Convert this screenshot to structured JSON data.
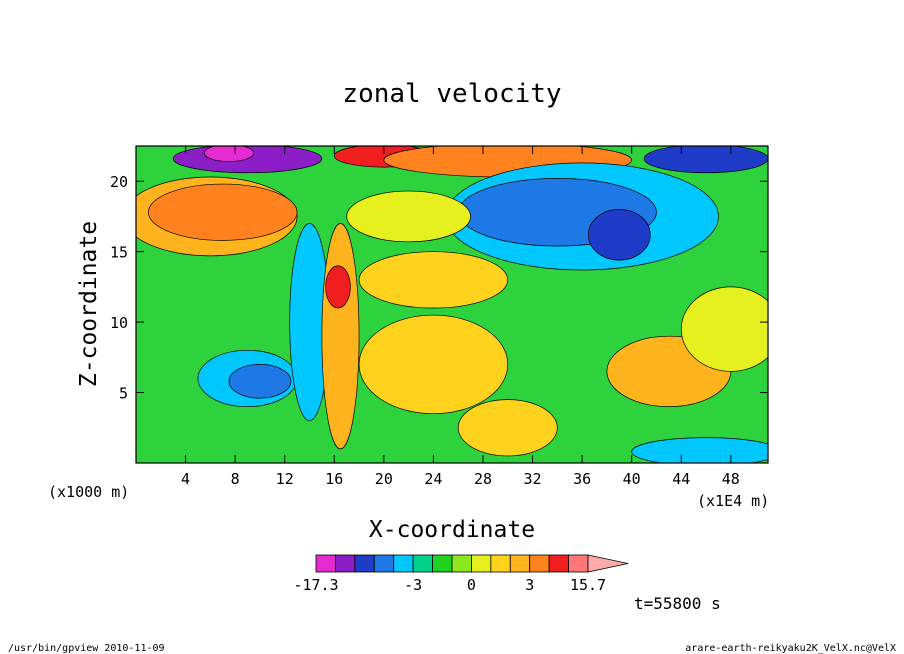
{
  "chart_data": {
    "type": "heatmap",
    "title": "zonal velocity",
    "xlabel": "X-coordinate",
    "ylabel": "Z-coordinate",
    "x_unit_label": "(x1E4 m)",
    "y_unit_label": "(x1000 m)",
    "xlim": [
      0,
      51
    ],
    "ylim": [
      0,
      22.5
    ],
    "x_ticks": [
      4,
      8,
      12,
      16,
      20,
      24,
      28,
      32,
      36,
      40,
      44,
      48
    ],
    "y_ticks": [
      5,
      10,
      15,
      20
    ],
    "grid": false,
    "time_label": "t=55800 s",
    "colorbar": {
      "min": -17.3,
      "max": 15.7,
      "tick_labels": [
        "-17.3",
        "-3",
        "0",
        "3",
        "15.7"
      ],
      "tick_values": [
        -17.3,
        -3,
        0,
        3,
        15.7
      ],
      "extend": "max",
      "bins": [
        {
          "from": -17.3,
          "to": -12.0,
          "color": "#e62ad2"
        },
        {
          "from": -12.0,
          "to": -9.0,
          "color": "#8c1ec8"
        },
        {
          "from": -9.0,
          "to": -6.0,
          "color": "#1e3cc8"
        },
        {
          "from": -6.0,
          "to": -4.0,
          "color": "#1e78e6"
        },
        {
          "from": -4.0,
          "to": -3.0,
          "color": "#00c8ff"
        },
        {
          "from": -3.0,
          "to": -2.0,
          "color": "#00d28c"
        },
        {
          "from": -2.0,
          "to": -1.0,
          "color": "#1ed21e"
        },
        {
          "from": -1.0,
          "to": 0.0,
          "color": "#8ce61e"
        },
        {
          "from": 0.0,
          "to": 1.0,
          "color": "#e6f01e"
        },
        {
          "from": 1.0,
          "to": 2.0,
          "color": "#ffd21e"
        },
        {
          "from": 2.0,
          "to": 3.0,
          "color": "#ffb41e"
        },
        {
          "from": 3.0,
          "to": 6.0,
          "color": "#ff821e"
        },
        {
          "from": 6.0,
          "to": 10.0,
          "color": "#f01e1e"
        },
        {
          "from": 10.0,
          "to": 15.7,
          "color": "#ff7878"
        }
      ],
      "extend_color": "#ffaaaa"
    },
    "background_color": "#2ed23c",
    "field_regions": [
      {
        "kind": "blob",
        "cx": 9,
        "cy": 21.6,
        "rx": 6,
        "ry": 1.0,
        "value": -10
      },
      {
        "kind": "blob",
        "cx": 7.5,
        "cy": 22.0,
        "rx": 2,
        "ry": 0.6,
        "value": -14
      },
      {
        "kind": "blob",
        "cx": 20,
        "cy": 21.8,
        "rx": 4,
        "ry": 0.8,
        "value": 8
      },
      {
        "kind": "blob",
        "cx": 30,
        "cy": 21.5,
        "rx": 10,
        "ry": 1.2,
        "value": 5
      },
      {
        "kind": "blob",
        "cx": 46,
        "cy": 21.6,
        "rx": 5,
        "ry": 1.0,
        "value": -7
      },
      {
        "kind": "blob",
        "cx": 6,
        "cy": 17.5,
        "rx": 7,
        "ry": 2.8,
        "value": 2.5
      },
      {
        "kind": "blob",
        "cx": 7,
        "cy": 17.8,
        "rx": 6,
        "ry": 2.0,
        "value": 5
      },
      {
        "kind": "blob",
        "cx": 36,
        "cy": 17.5,
        "rx": 11,
        "ry": 3.8,
        "value": -3.5
      },
      {
        "kind": "blob",
        "cx": 34,
        "cy": 17.8,
        "rx": 8,
        "ry": 2.4,
        "value": -6
      },
      {
        "kind": "blob",
        "cx": 39,
        "cy": 16.2,
        "rx": 2.5,
        "ry": 1.8,
        "value": -8
      },
      {
        "kind": "blob",
        "cx": 22,
        "cy": 17.5,
        "rx": 5,
        "ry": 1.8,
        "value": 0.5
      },
      {
        "kind": "blob",
        "cx": 24,
        "cy": 13.0,
        "rx": 6,
        "ry": 2.0,
        "value": 1.5
      },
      {
        "kind": "blob",
        "cx": 9,
        "cy": 6.0,
        "rx": 4,
        "ry": 2.0,
        "value": -3.5
      },
      {
        "kind": "blob",
        "cx": 10,
        "cy": 5.8,
        "rx": 2.5,
        "ry": 1.2,
        "value": -6
      },
      {
        "kind": "blob",
        "cx": 24,
        "cy": 7.0,
        "rx": 6,
        "ry": 3.5,
        "value": 1.5
      },
      {
        "kind": "blob",
        "cx": 43,
        "cy": 6.5,
        "rx": 5,
        "ry": 2.5,
        "value": 2.5
      },
      {
        "kind": "blob",
        "cx": 48,
        "cy": 9.5,
        "rx": 4,
        "ry": 3.0,
        "value": 0.5
      },
      {
        "kind": "blob",
        "cx": 30,
        "cy": 2.5,
        "rx": 4,
        "ry": 2.0,
        "value": 1.5
      },
      {
        "kind": "blob",
        "cx": 14,
        "cy": 10.0,
        "rx": 1.6,
        "ry": 7.0,
        "value": -3.5
      },
      {
        "kind": "blob",
        "cx": 16.5,
        "cy": 9.0,
        "rx": 1.5,
        "ry": 8.0,
        "value": 2.5
      },
      {
        "kind": "blob",
        "cx": 16.3,
        "cy": 12.5,
        "rx": 1.0,
        "ry": 1.5,
        "value": 7
      },
      {
        "kind": "blob",
        "cx": 46,
        "cy": 0.8,
        "rx": 6,
        "ry": 1.0,
        "value": -3.5
      }
    ]
  }
}
